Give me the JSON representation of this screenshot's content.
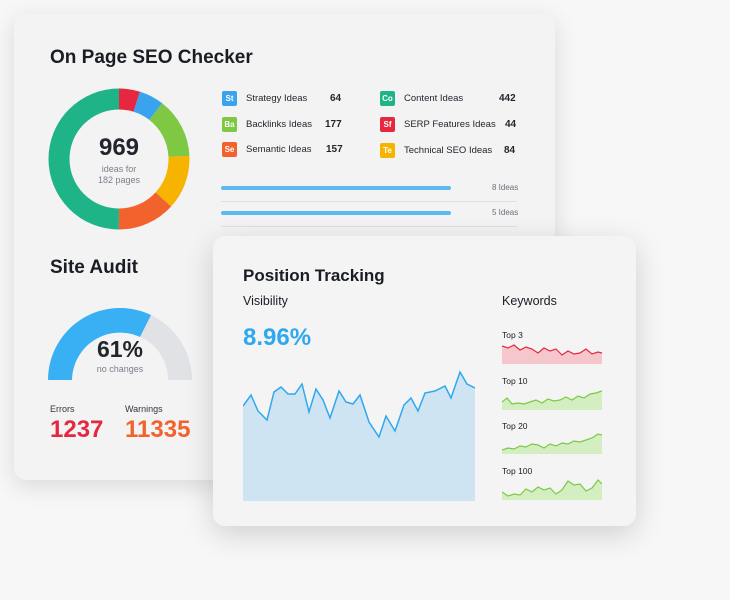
{
  "seo": {
    "title": "On Page SEO Checker",
    "donut_value": "969",
    "donut_sub1": "ideas for",
    "donut_sub2": "182 pages",
    "ideas": [
      {
        "badge": "St",
        "label": "Strategy Ideas",
        "count": "64",
        "color": "#3aa3ee"
      },
      {
        "badge": "Ba",
        "label": "Backlinks Ideas",
        "count": "177",
        "color": "#7ec843"
      },
      {
        "badge": "Se",
        "label": "Semantic Ideas",
        "count": "157",
        "color": "#f2622d"
      },
      {
        "badge": "Co",
        "label": "Content Ideas",
        "count": "442",
        "color": "#1eb487"
      },
      {
        "badge": "Sf",
        "label": "SERP Features Ideas",
        "count": "44",
        "color": "#e5283f"
      },
      {
        "badge": "Te",
        "label": "Technical SEO Ideas",
        "count": "84",
        "color": "#f6b400"
      }
    ],
    "progress": [
      {
        "label": "8 Ideas"
      },
      {
        "label": "5 Ideas"
      }
    ]
  },
  "audit": {
    "title": "Site Audit",
    "value": "61%",
    "sub": "no changes",
    "errors_label": "Errors",
    "errors_value": "1237",
    "warnings_label": "Warnings",
    "warnings_value": "11335"
  },
  "tracking": {
    "title": "Position Tracking",
    "visibility_label": "Visibility",
    "visibility_value": "8.96%",
    "keywords_label": "Keywords",
    "keyword_groups": [
      {
        "label": "Top 3"
      },
      {
        "label": "Top 10"
      },
      {
        "label": "Top 20"
      },
      {
        "label": "Top 100"
      }
    ]
  },
  "colors": {
    "green": "#1eb487",
    "red": "#e5283f",
    "blue": "#3aa3ee",
    "lime": "#7ec843",
    "yellow": "#f6b400",
    "orange": "#f2622d",
    "errors": "#e5283f",
    "warnings": "#f2622d"
  }
}
